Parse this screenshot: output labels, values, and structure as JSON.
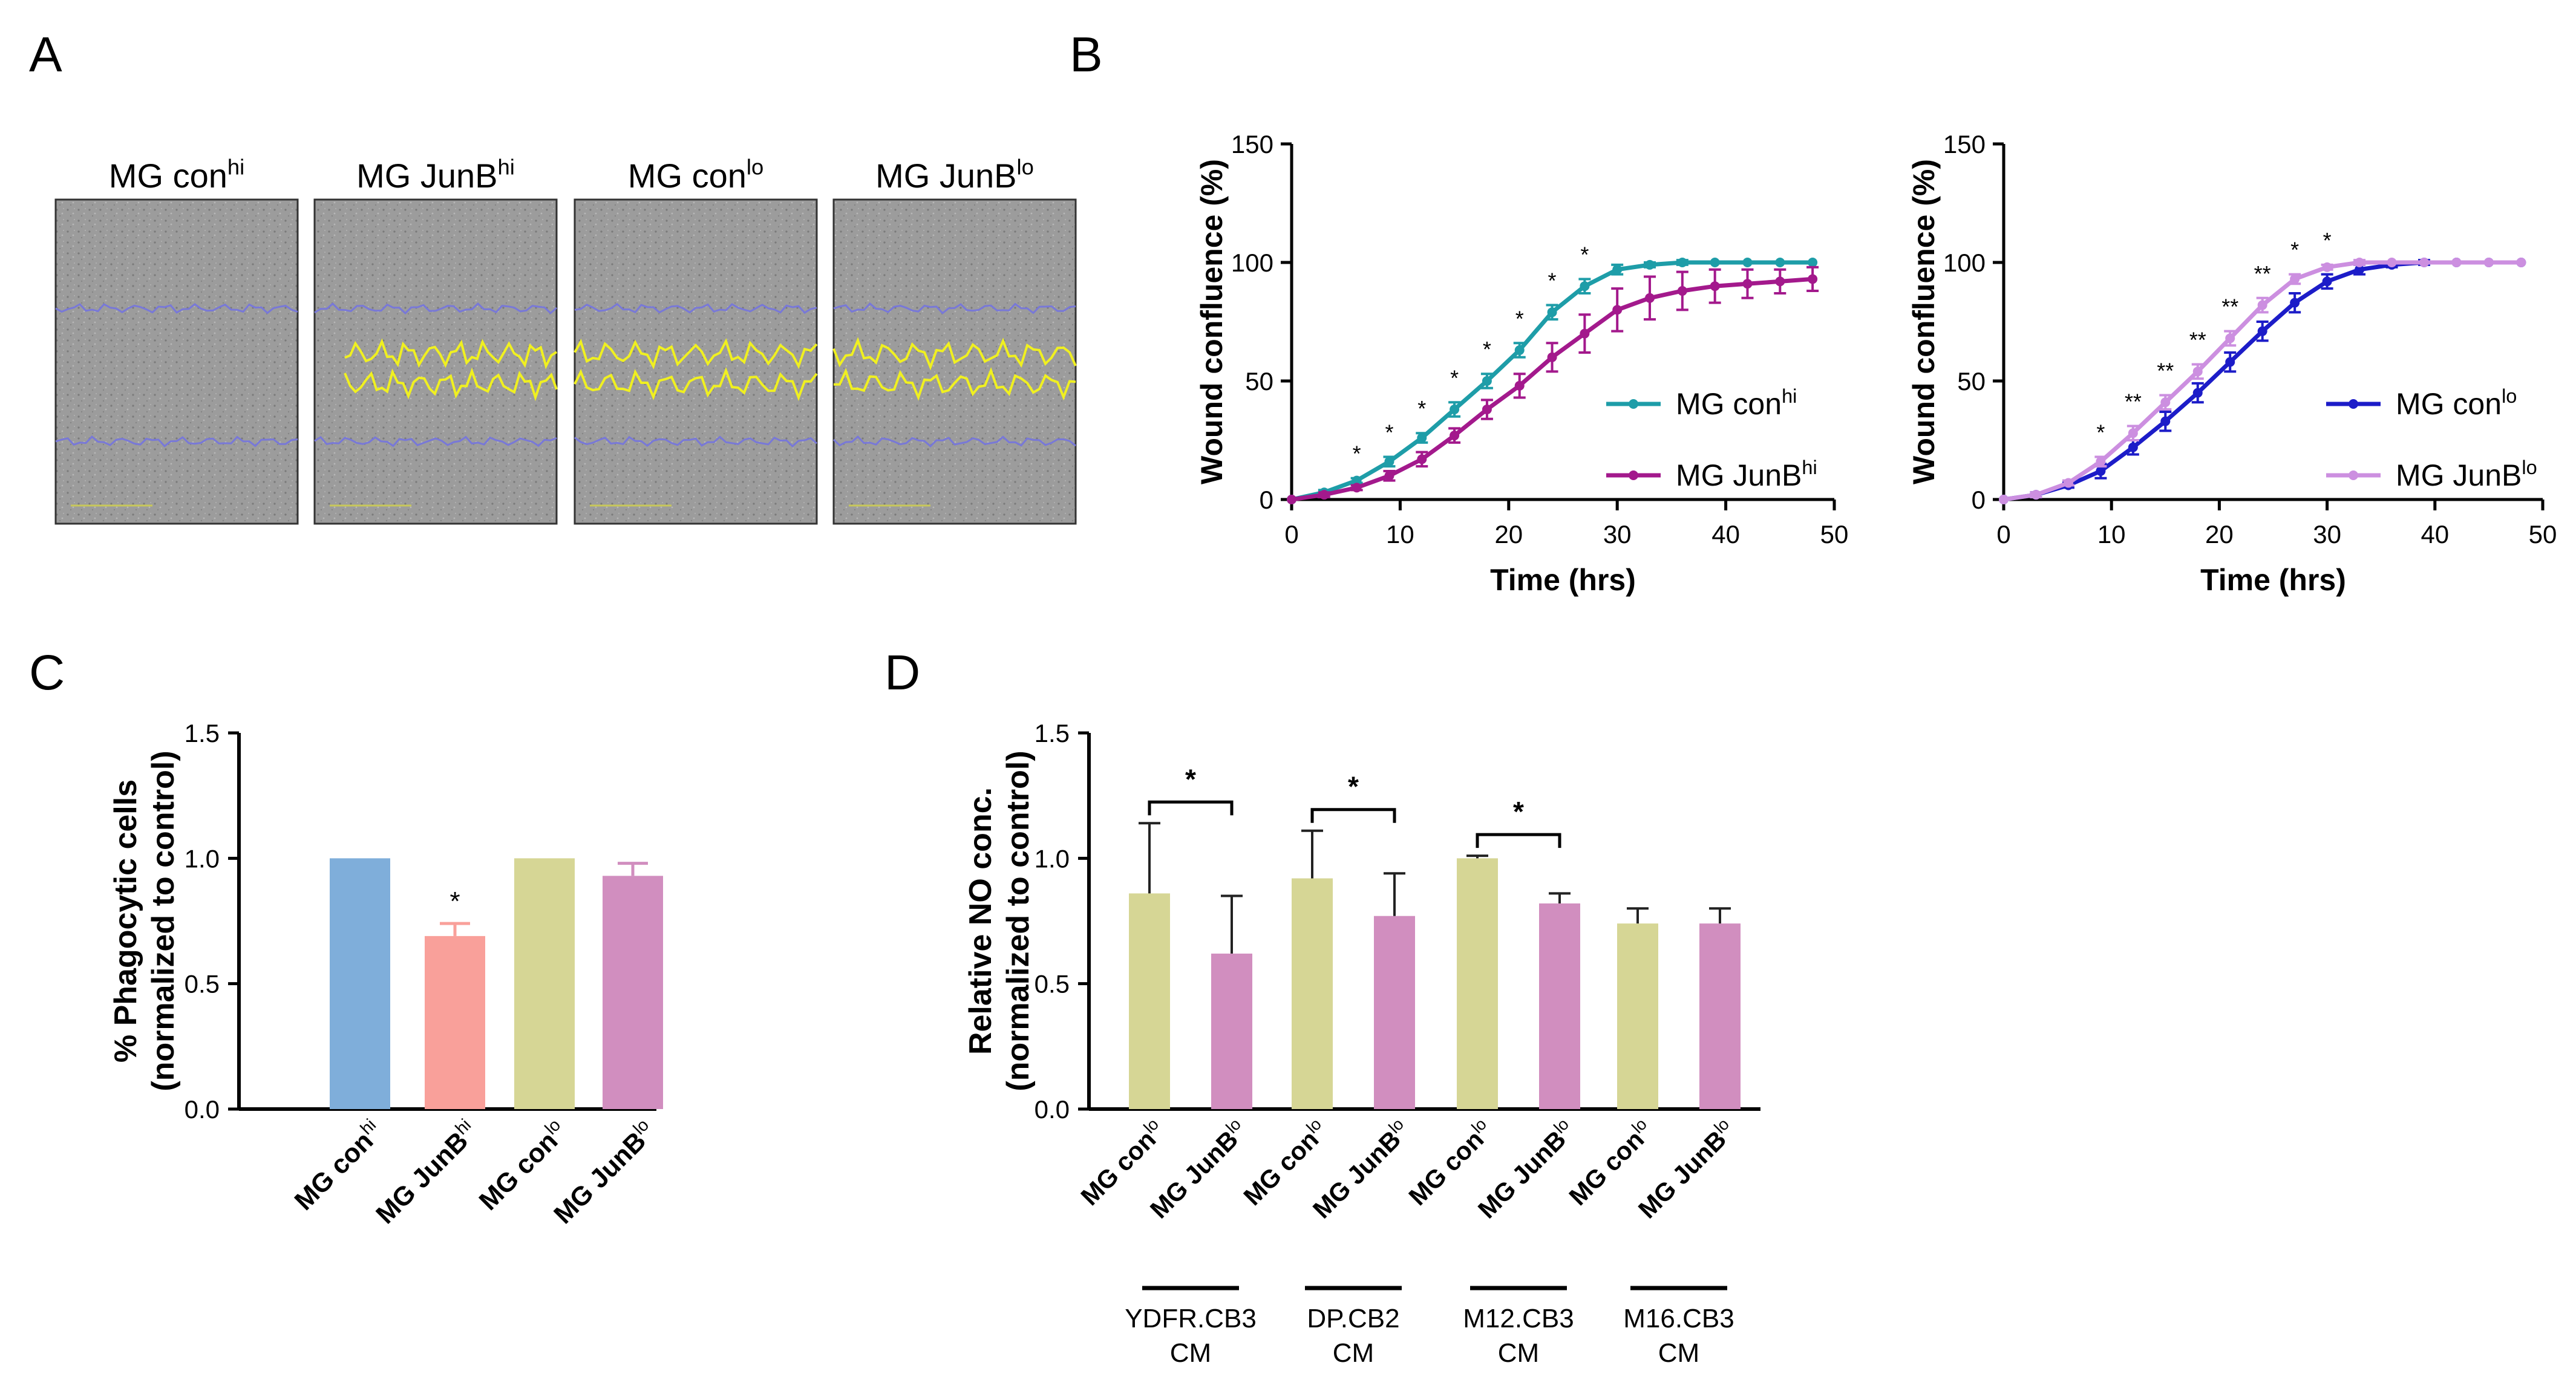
{
  "panels": {
    "a": {
      "letter": "A"
    },
    "b": {
      "letter": "B"
    },
    "c": {
      "letter": "C"
    },
    "d": {
      "letter": "D"
    }
  },
  "micrographs": [
    {
      "name": "MG con",
      "sup": "hi"
    },
    {
      "name": "MG JunB",
      "sup": "hi"
    },
    {
      "name": "MG con",
      "sup": "lo"
    },
    {
      "name": "MG JunB",
      "sup": "lo"
    }
  ],
  "colors": {
    "con_hi": "#1E9DA8",
    "junb_hi": "#A3198C",
    "con_lo": "#1C1CC8",
    "junb_lo": "#CC8FE0",
    "bar_con_hi": "#7FAEDA",
    "bar_junb_hi": "#F9A09A",
    "bar_con": "#D6D695",
    "bar_junb": "#D18EBF",
    "wound_edge": "#7878D8",
    "wound_front": "#F0F020"
  },
  "chart_data": [
    {
      "id": "B1",
      "type": "line",
      "xlabel": "Time (hrs)",
      "ylabel": "Wound confluence (%)",
      "xlim": [
        0,
        50
      ],
      "ylim": [
        0,
        150
      ],
      "xticks": [
        "0",
        "10",
        "20",
        "30",
        "40",
        "50"
      ],
      "yticks": [
        "0",
        "50",
        "100",
        "150"
      ],
      "x": [
        0,
        3,
        6,
        9,
        12,
        15,
        18,
        21,
        24,
        27,
        30,
        33,
        36,
        39,
        42,
        45,
        48
      ],
      "series": [
        {
          "name": "MG con",
          "sup": "hi",
          "values": [
            0,
            3,
            8,
            16,
            26,
            38,
            50,
            63,
            79,
            90,
            97,
            99,
            100,
            100,
            100,
            100,
            100
          ],
          "errors": [
            0,
            1,
            1,
            2,
            2,
            3,
            3,
            3,
            3,
            3,
            2,
            1,
            1,
            0,
            0,
            0,
            0
          ]
        },
        {
          "name": "MG JunB",
          "sup": "hi",
          "values": [
            0,
            2,
            5,
            10,
            17,
            27,
            38,
            48,
            60,
            70,
            80,
            85,
            88,
            90,
            91,
            92,
            93
          ],
          "errors": [
            0,
            1,
            1,
            2,
            3,
            3,
            4,
            5,
            6,
            8,
            9,
            9,
            8,
            7,
            6,
            5,
            5
          ]
        }
      ],
      "significance": [
        {
          "x": 6,
          "text": "*"
        },
        {
          "x": 9,
          "text": "*"
        },
        {
          "x": 12,
          "text": "*"
        },
        {
          "x": 15,
          "text": "*"
        },
        {
          "x": 18,
          "text": "*"
        },
        {
          "x": 21,
          "text": "*"
        },
        {
          "x": 24,
          "text": "*"
        },
        {
          "x": 27,
          "text": "*"
        }
      ],
      "legend": "right"
    },
    {
      "id": "B2",
      "type": "line",
      "xlabel": "Time (hrs)",
      "ylabel": "Wound confluence (%)",
      "xlim": [
        0,
        50
      ],
      "ylim": [
        0,
        150
      ],
      "xticks": [
        "0",
        "10",
        "20",
        "30",
        "40",
        "50"
      ],
      "yticks": [
        "0",
        "50",
        "100",
        "150"
      ],
      "x": [
        0,
        3,
        6,
        9,
        12,
        15,
        18,
        21,
        24,
        27,
        30,
        33,
        36,
        39,
        42,
        45,
        48
      ],
      "series": [
        {
          "name": "MG con",
          "sup": "lo",
          "values": [
            0,
            2,
            6,
            12,
            22,
            33,
            45,
            58,
            71,
            83,
            92,
            97,
            99,
            100,
            100,
            100,
            100
          ],
          "errors": [
            0,
            1,
            1,
            3,
            3,
            4,
            4,
            4,
            4,
            4,
            3,
            2,
            1,
            1,
            0,
            0,
            0
          ]
        },
        {
          "name": "MG JunB",
          "sup": "lo",
          "values": [
            0,
            2,
            7,
            16,
            28,
            41,
            54,
            68,
            82,
            93,
            98,
            100,
            100,
            100,
            100,
            100,
            100
          ],
          "errors": [
            0,
            1,
            1,
            2,
            3,
            3,
            3,
            3,
            3,
            2,
            1,
            1,
            0,
            0,
            0,
            0,
            0
          ]
        }
      ],
      "significance": [
        {
          "x": 9,
          "text": "*"
        },
        {
          "x": 12,
          "text": "**"
        },
        {
          "x": 15,
          "text": "**"
        },
        {
          "x": 18,
          "text": "**"
        },
        {
          "x": 21,
          "text": "**"
        },
        {
          "x": 24,
          "text": "**"
        },
        {
          "x": 27,
          "text": "*"
        },
        {
          "x": 30,
          "text": "*"
        }
      ],
      "legend": "right"
    },
    {
      "id": "C",
      "type": "bar",
      "ylabel": [
        "% Phagocytic cells",
        "(normalized to control)"
      ],
      "ylim": [
        0,
        1.5
      ],
      "yticks": [
        "0.0",
        "0.5",
        "1.0",
        "1.5"
      ],
      "categories": [
        {
          "name": "MG con",
          "sup": "hi"
        },
        {
          "name": "MG JunB",
          "sup": "hi"
        },
        {
          "name": "MG con",
          "sup": "lo"
        },
        {
          "name": "MG JunB",
          "sup": "lo"
        }
      ],
      "values": [
        1.0,
        0.69,
        1.0,
        0.93
      ],
      "errors": [
        0,
        0.05,
        0,
        0.05
      ],
      "significance": [
        {
          "index": 1,
          "text": "*"
        }
      ]
    },
    {
      "id": "D",
      "type": "bar",
      "ylabel": [
        "Relative NO conc.",
        "(normalized to control)"
      ],
      "ylim": [
        0,
        1.5
      ],
      "yticks": [
        "0.0",
        "0.5",
        "1.0",
        "1.5"
      ],
      "groups": [
        {
          "label": [
            "YDFR.CB3",
            "CM"
          ],
          "values": [
            0.86,
            0.62
          ],
          "errors": [
            0.28,
            0.23
          ],
          "sig": "*"
        },
        {
          "label": [
            "DP.CB2",
            "CM"
          ],
          "values": [
            0.92,
            0.77
          ],
          "errors": [
            0.19,
            0.17
          ],
          "sig": "*"
        },
        {
          "label": [
            "M12.CB3",
            "CM"
          ],
          "values": [
            1.0,
            0.82
          ],
          "errors": [
            0.01,
            0.04
          ],
          "sig": "*"
        },
        {
          "label": [
            "M16.CB3",
            "CM"
          ],
          "values": [
            0.74,
            0.74
          ],
          "errors": [
            0.06,
            0.06
          ],
          "sig": ""
        }
      ],
      "bar_labels": [
        {
          "name": "MG con",
          "sup": "lo"
        },
        {
          "name": "MG JunB",
          "sup": "lo"
        }
      ]
    }
  ]
}
